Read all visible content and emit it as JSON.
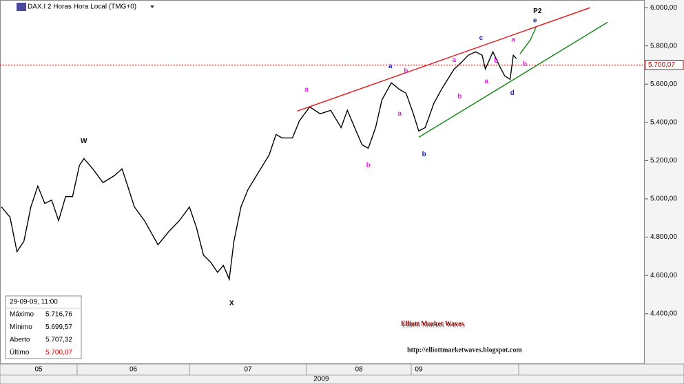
{
  "chart_data": {
    "type": "line",
    "title": "DAX.I 2 Horas Hora Local (TMG+0)",
    "xlim": [
      5,
      11
    ],
    "ylim": [
      4140,
      6040
    ],
    "yticks": [
      {
        "value": 4400,
        "label": "4.400,00"
      },
      {
        "value": 4600,
        "label": "4.600,00"
      },
      {
        "value": 4800,
        "label": "4.800,00"
      },
      {
        "value": 5000,
        "label": "5.000,00"
      },
      {
        "value": 5200,
        "label": "5.200,00"
      },
      {
        "value": 5400,
        "label": "5.400,00"
      },
      {
        "value": 5600,
        "label": "5.600,00"
      },
      {
        "value": 5800,
        "label": "5.800,00"
      },
      {
        "value": 6000,
        "label": "6.000,00"
      }
    ],
    "xticks": [
      {
        "value": 5.5,
        "label": "05"
      },
      {
        "value": 6.5,
        "label": "06"
      },
      {
        "value": 7.5,
        "label": "07"
      },
      {
        "value": 8.5,
        "label": "08"
      },
      {
        "value": 9.07,
        "label": "09"
      }
    ],
    "xminor_ticks": [
      6,
      7,
      8,
      9,
      10
    ],
    "x2ticks": [
      {
        "value": 8.14,
        "label": "2009"
      }
    ],
    "series": [
      {
        "name": "DAX",
        "color": "#000000",
        "x": [
          5.02,
          5.13,
          5.22,
          5.31,
          5.4,
          5.49,
          5.58,
          5.67,
          5.76,
          5.85,
          5.94,
          6.02,
          6.06,
          6.14,
          6.23,
          6.33,
          6.4,
          6.45,
          6.51,
          6.6,
          6.72,
          6.82,
          6.91,
          7.0,
          7.06,
          7.12,
          7.18,
          7.24,
          7.29,
          7.34,
          7.38,
          7.44,
          7.5,
          7.59,
          7.68,
          7.74,
          7.79,
          7.88,
          7.94,
          8.03,
          8.13,
          8.23,
          8.33,
          8.39,
          8.46,
          8.53,
          8.59,
          8.66,
          8.72,
          8.81,
          8.89,
          8.95,
          9.02,
          9.07,
          9.13,
          9.21,
          9.28,
          9.34,
          9.4,
          9.47,
          9.53,
          9.6,
          9.66,
          9.69,
          9.76,
          9.82,
          9.87,
          9.92,
          9.95,
          9.98
        ],
        "values": [
          4958,
          4904,
          4724,
          4778,
          4958,
          5067,
          4976,
          4994,
          4886,
          5012,
          5012,
          5175,
          5211,
          5157,
          5085,
          5121,
          5157,
          5067,
          4958,
          4886,
          4760,
          4832,
          4886,
          4958,
          4850,
          4706,
          4670,
          4616,
          4652,
          4580,
          4778,
          4958,
          5049,
          5139,
          5229,
          5337,
          5319,
          5319,
          5409,
          5481,
          5445,
          5463,
          5373,
          5463,
          5373,
          5283,
          5265,
          5373,
          5517,
          5607,
          5571,
          5553,
          5445,
          5355,
          5373,
          5499,
          5571,
          5625,
          5679,
          5715,
          5751,
          5769,
          5751,
          5679,
          5769,
          5697,
          5643,
          5625,
          5751,
          5733
        ]
      }
    ],
    "trend_lines": [
      {
        "color": "#e02020",
        "x": [
          7.92,
          10.57
        ],
        "values": [
          5459,
          6000
        ]
      },
      {
        "color": "#1a8a1a",
        "x": [
          9.07,
          10.71
        ],
        "values": [
          5322,
          5924
        ]
      }
    ],
    "last_price": {
      "value": 5700.07,
      "label": "5.700,07",
      "color": "#cc0000"
    },
    "annotations": [
      {
        "text": "W",
        "color": "#000000",
        "x": 6.06,
        "y": 5301
      },
      {
        "text": "X",
        "color": "#000000",
        "x": 7.36,
        "y": 4454
      },
      {
        "text": "P2",
        "color": "#000000",
        "x": 10.15,
        "y": 5982
      },
      {
        "text": "a",
        "color": "#e020e0",
        "x": 8.0,
        "y": 5571
      },
      {
        "text": "b",
        "color": "#e020e0",
        "x": 8.59,
        "y": 5175
      },
      {
        "text": "a",
        "color": "#e020e0",
        "x": 8.89,
        "y": 5445
      },
      {
        "text": "b",
        "color": "#e020e0",
        "x": 8.95,
        "y": 5668
      },
      {
        "text": "a",
        "color": "#1020c0",
        "x": 8.8,
        "y": 5694
      },
      {
        "text": "b",
        "color": "#1020c0",
        "x": 9.12,
        "y": 5232
      },
      {
        "text": "b",
        "color": "#e020e0",
        "x": 9.45,
        "y": 5535
      },
      {
        "text": "a",
        "color": "#e020e0",
        "x": 9.4,
        "y": 5726
      },
      {
        "text": "c",
        "color": "#1020c0",
        "x": 9.65,
        "y": 5841
      },
      {
        "text": "a",
        "color": "#e020e0",
        "x": 9.7,
        "y": 5614
      },
      {
        "text": "b",
        "color": "#e020e0",
        "x": 9.79,
        "y": 5722
      },
      {
        "text": "a",
        "color": "#e020e0",
        "x": 9.95,
        "y": 5831
      },
      {
        "text": "b",
        "color": "#e020e0",
        "x": 10.05,
        "y": 5704
      },
      {
        "text": "d",
        "color": "#1020c0",
        "x": 9.94,
        "y": 5553
      },
      {
        "text": "e",
        "color": "#1020c0",
        "x": 10.13,
        "y": 5932
      }
    ]
  },
  "info_box": {
    "title": "29-09-09, 11:00",
    "rows": [
      [
        "Máximo",
        "5.716,76"
      ],
      [
        "Mínimo",
        "5.699,57"
      ],
      [
        "Aberto",
        "5.707,32"
      ],
      [
        "Último",
        "5.700,07"
      ]
    ]
  },
  "watermark": {
    "title": "Elliott Market Waves",
    "url": "http://elliottmarketwaves.blogspot.com"
  }
}
